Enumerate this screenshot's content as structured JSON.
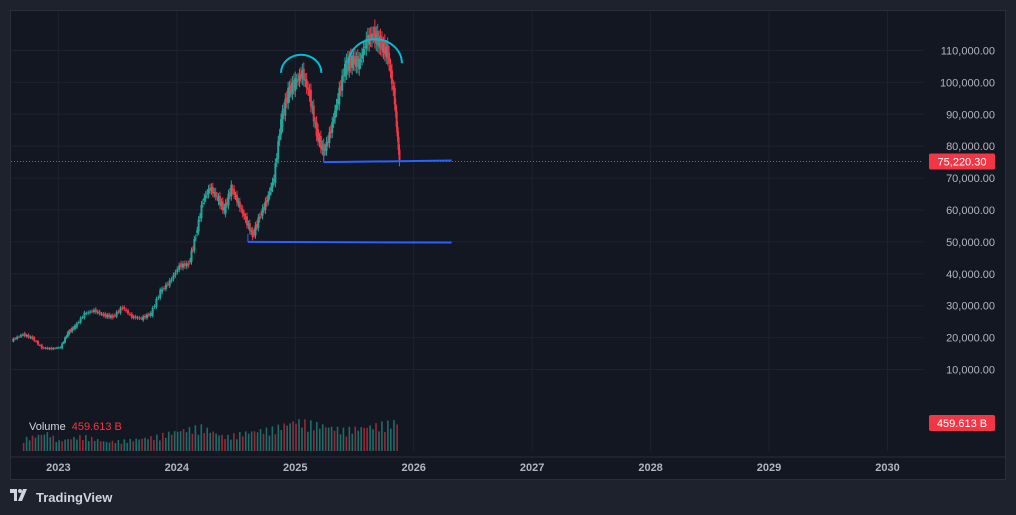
{
  "branding": {
    "name": "TradingView",
    "icon": "tradingview-logo-icon"
  },
  "volume_pane": {
    "label": "Volume",
    "value": "459.613 B"
  },
  "price_badge": {
    "value": "75,220.30",
    "color": "#f23645"
  },
  "volume_badge": {
    "value": "459.613 B",
    "color": "#f23645"
  },
  "colors": {
    "up": "#26a69a",
    "down": "#f23645",
    "trendline": "#2962ff",
    "arc": "#00bcd4",
    "background": "#131722",
    "grid": "#1e2230",
    "text": "#b2b5be"
  },
  "chart_data": {
    "type": "candlestick",
    "yaxis": {
      "ticks": [
        110000,
        100000,
        90000,
        80000,
        70000,
        60000,
        50000,
        40000,
        30000,
        20000,
        10000
      ],
      "tick_labels": [
        "110,000.00",
        "100,000.00",
        "90,000.00",
        "80,000.00",
        "70,000.00",
        "60,000.00",
        "50,000.00",
        "40,000.00",
        "30,000.00",
        "20,000.00",
        "10,000.00"
      ]
    },
    "xaxis": {
      "ticks": [
        2023,
        2024,
        2025,
        2026,
        2027,
        2028,
        2029,
        2030
      ],
      "tick_labels": [
        "2023",
        "2024",
        "2025",
        "2026",
        "2027",
        "2028",
        "2029",
        "2030"
      ]
    },
    "xlim": [
      2022.6,
      2030.3
    ],
    "ylim": [
      2000,
      118000
    ],
    "last_price": 75220.3,
    "series_close": [
      [
        2022.62,
        19500
      ],
      [
        2022.7,
        21000
      ],
      [
        2022.78,
        19800
      ],
      [
        2022.86,
        16800
      ],
      [
        2022.94,
        16500
      ],
      [
        2023.02,
        17000
      ],
      [
        2023.08,
        21500
      ],
      [
        2023.14,
        23500
      ],
      [
        2023.22,
        27500
      ],
      [
        2023.3,
        28500
      ],
      [
        2023.38,
        27000
      ],
      [
        2023.46,
        26500
      ],
      [
        2023.54,
        29500
      ],
      [
        2023.62,
        26500
      ],
      [
        2023.7,
        26000
      ],
      [
        2023.78,
        27500
      ],
      [
        2023.86,
        34500
      ],
      [
        2023.94,
        37500
      ],
      [
        2024.02,
        42500
      ],
      [
        2024.1,
        43000
      ],
      [
        2024.16,
        52000
      ],
      [
        2024.22,
        63000
      ],
      [
        2024.28,
        67000
      ],
      [
        2024.34,
        64000
      ],
      [
        2024.4,
        60000
      ],
      [
        2024.46,
        67000
      ],
      [
        2024.52,
        62000
      ],
      [
        2024.58,
        57000
      ],
      [
        2024.64,
        52000
      ],
      [
        2024.7,
        58000
      ],
      [
        2024.76,
        63000
      ],
      [
        2024.82,
        70000
      ],
      [
        2024.88,
        88000
      ],
      [
        2024.94,
        97000
      ],
      [
        2025.0,
        100000
      ],
      [
        2025.06,
        103000
      ],
      [
        2025.12,
        96000
      ],
      [
        2025.18,
        84000
      ],
      [
        2025.24,
        78000
      ],
      [
        2025.3,
        85000
      ],
      [
        2025.36,
        95000
      ],
      [
        2025.42,
        105000
      ],
      [
        2025.48,
        107000
      ],
      [
        2025.54,
        106000
      ],
      [
        2025.6,
        113000
      ],
      [
        2025.66,
        115000
      ],
      [
        2025.72,
        112000
      ],
      [
        2025.78,
        109000
      ],
      [
        2025.84,
        94000
      ],
      [
        2025.88,
        75220
      ]
    ],
    "volume": [
      [
        2022.7,
        12
      ],
      [
        2022.9,
        18
      ],
      [
        2023.0,
        10
      ],
      [
        2023.2,
        15
      ],
      [
        2023.4,
        9
      ],
      [
        2023.6,
        11
      ],
      [
        2023.8,
        14
      ],
      [
        2024.0,
        20
      ],
      [
        2024.2,
        24
      ],
      [
        2024.4,
        14
      ],
      [
        2024.6,
        19
      ],
      [
        2024.8,
        22
      ],
      [
        2025.0,
        30
      ],
      [
        2025.2,
        26
      ],
      [
        2025.4,
        21
      ],
      [
        2025.6,
        24
      ],
      [
        2025.8,
        28
      ],
      [
        2025.88,
        30
      ]
    ],
    "annotations": {
      "arcs": [
        {
          "x_start": 2024.88,
          "x_end": 2025.22,
          "y": 103000
        },
        {
          "x_start": 2025.45,
          "x_end": 2025.9,
          "y": 106000
        }
      ],
      "hlines": [
        {
          "x_start": 2025.24,
          "x_end": 2026.32,
          "y_start": 75000,
          "y_end": 75500
        },
        {
          "x_start": 2024.6,
          "x_end": 2026.32,
          "y_start": 50000,
          "y_end": 49800
        }
      ]
    }
  }
}
